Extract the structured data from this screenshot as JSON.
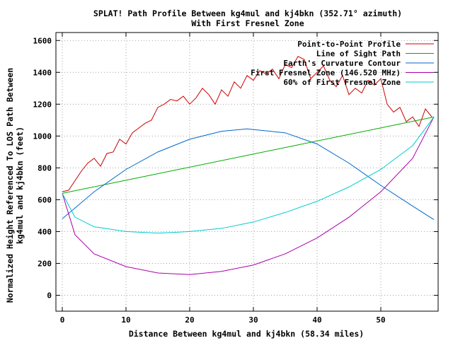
{
  "chart_data": {
    "type": "line",
    "title": "SPLAT! Path Profile Between kg4mul and kj4bkn (352.71° azimuth)",
    "subtitle": "With First Fresnel Zone",
    "xlabel": "Distance Between kg4mul and kj4bkn (58.34 miles)",
    "ylabel_lines": [
      "Normalized Height Referenced To LOS Path Between",
      "kg4mul and kj4bkn (feet)"
    ],
    "xlim": [
      -1,
      59
    ],
    "ylim": [
      -100,
      1650
    ],
    "xticks": [
      0,
      10,
      20,
      30,
      40,
      50
    ],
    "xtick_labels": [
      "0",
      "10",
      "20",
      "30",
      "40",
      "50"
    ],
    "yticks": [
      0,
      200,
      400,
      600,
      800,
      1000,
      1200,
      1400,
      1600
    ],
    "ytick_labels": [
      "0",
      "200",
      "400",
      "600",
      "800",
      "1000",
      "1200",
      "1400",
      "1600"
    ],
    "grid": true,
    "legend_position": "top-right",
    "series": [
      {
        "name": "Point-to-Point Profile",
        "color": "#cc0000",
        "x": [
          0,
          1,
          2,
          3,
          4,
          5,
          6,
          7,
          8,
          9,
          10,
          11,
          12,
          13,
          14,
          15,
          16,
          17,
          18,
          19,
          20,
          21,
          22,
          23,
          24,
          25,
          26,
          27,
          28,
          29,
          30,
          31,
          32,
          33,
          34,
          35,
          36,
          37,
          38,
          39,
          40,
          41,
          42,
          43,
          44,
          45,
          46,
          47,
          48,
          49,
          50,
          51,
          52,
          53,
          54,
          55,
          56,
          57,
          58
        ],
        "y": [
          650,
          660,
          720,
          780,
          830,
          860,
          810,
          890,
          900,
          980,
          950,
          1020,
          1050,
          1080,
          1100,
          1180,
          1200,
          1230,
          1220,
          1250,
          1200,
          1240,
          1300,
          1260,
          1200,
          1290,
          1250,
          1340,
          1300,
          1380,
          1350,
          1410,
          1390,
          1420,
          1360,
          1450,
          1430,
          1500,
          1480,
          1360,
          1400,
          1440,
          1350,
          1310,
          1380,
          1260,
          1300,
          1270,
          1350,
          1320,
          1360,
          1200,
          1150,
          1180,
          1090,
          1120,
          1060,
          1170,
          1120
        ]
      },
      {
        "name": "Line of Sight Path",
        "color": "#00aa00",
        "x": [
          0,
          58.34
        ],
        "y": [
          640,
          1120
        ]
      },
      {
        "name": "Earth's Curvature Contour",
        "color": "#0066cc",
        "x": [
          0,
          5,
          10,
          15,
          20,
          25,
          29,
          35,
          40,
          45,
          50,
          55,
          58.34
        ],
        "y": [
          480,
          650,
          790,
          900,
          980,
          1030,
          1045,
          1020,
          950,
          830,
          690,
          560,
          475
        ]
      },
      {
        "name": "First Fresnel Zone (146.520 MHz)",
        "color": "#aa00aa",
        "x": [
          0,
          2,
          5,
          10,
          15,
          20,
          25,
          30,
          35,
          40,
          45,
          50,
          55,
          58.34
        ],
        "y": [
          640,
          380,
          260,
          180,
          140,
          130,
          150,
          190,
          260,
          360,
          490,
          650,
          860,
          1120
        ]
      },
      {
        "name": "60% of First Fresnel Zone",
        "color": "#00cccc",
        "x": [
          0,
          2,
          5,
          10,
          15,
          20,
          25,
          30,
          35,
          40,
          45,
          50,
          55,
          58.34
        ],
        "y": [
          640,
          490,
          430,
          400,
          390,
          400,
          420,
          460,
          520,
          590,
          680,
          790,
          940,
          1120
        ]
      }
    ]
  }
}
